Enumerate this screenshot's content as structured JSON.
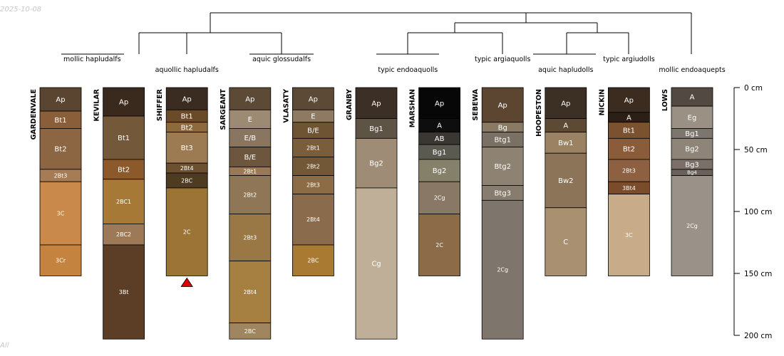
{
  "watermark": {
    "date": "2025-10-08",
    "footer": "All"
  },
  "depth_axis": {
    "unit_suffix": " cm",
    "ticks": [
      0,
      50,
      100,
      150,
      200
    ],
    "max_depth": 200
  },
  "taxa": [
    {
      "label": "mollic hapludalfs",
      "soils": [
        "GARDENVALE",
        "KEVILAR"
      ]
    },
    {
      "label": "aquollic hapludalfs",
      "soils": [
        "SHIFFER"
      ]
    },
    {
      "label": "aquic glossudalfs",
      "soils": [
        "SARGEANT",
        "VLASATY"
      ]
    },
    {
      "label": "typic endoaquolls",
      "soils": [
        "GRANBY",
        "MARSHAN"
      ]
    },
    {
      "label": "typic argiaquolls",
      "soils": [
        "SEBEWA"
      ]
    },
    {
      "label": "aquic hapludolls",
      "soils": [
        "HOOPESTON"
      ]
    },
    {
      "label": "typic argiudolls",
      "soils": [
        "NICKIN"
      ]
    },
    {
      "label": "mollic endoaquepts",
      "soils": [
        "LOWS"
      ]
    }
  ],
  "profiles": [
    {
      "name": "GARDENVALE",
      "horizons": [
        {
          "name": "Ap",
          "top": 0,
          "bottom": 19,
          "color": "#5a4630"
        },
        {
          "name": "Bt1",
          "top": 19,
          "bottom": 33,
          "color": "#8a5e38"
        },
        {
          "name": "Bt2",
          "top": 33,
          "bottom": 66,
          "color": "#8c6543"
        },
        {
          "name": "2Bt3",
          "top": 66,
          "bottom": 76,
          "color": "#a67c55"
        },
        {
          "name": "3C",
          "top": 76,
          "bottom": 127,
          "color": "#c8894b"
        },
        {
          "name": "3Cr",
          "top": 127,
          "bottom": 152,
          "color": "#c4843f"
        }
      ]
    },
    {
      "name": "KEVILAR",
      "horizons": [
        {
          "name": "Ap",
          "top": 0,
          "bottom": 23,
          "color": "#3a2a1e"
        },
        {
          "name": "Bt1",
          "top": 23,
          "bottom": 58,
          "color": "#74583a"
        },
        {
          "name": "Bt2",
          "top": 58,
          "bottom": 74,
          "color": "#8c5a2a"
        },
        {
          "name": "2BC1",
          "top": 74,
          "bottom": 110,
          "color": "#a67a36"
        },
        {
          "name": "2BC2",
          "top": 110,
          "bottom": 127,
          "color": "#9c7a58"
        },
        {
          "name": "3Bt",
          "top": 127,
          "bottom": 203,
          "color": "#5c3e26"
        }
      ]
    },
    {
      "name": "SHIFFER",
      "mark": true,
      "horizons": [
        {
          "name": "Ap",
          "top": 0,
          "bottom": 18,
          "color": "#3a2c20"
        },
        {
          "name": "Bt1",
          "top": 18,
          "bottom": 28,
          "color": "#6b4a28"
        },
        {
          "name": "Bt2",
          "top": 28,
          "bottom": 36,
          "color": "#8c6a3e"
        },
        {
          "name": "Bt3",
          "top": 36,
          "bottom": 61,
          "color": "#9c7a52"
        },
        {
          "name": "2Bt4",
          "top": 61,
          "bottom": 69,
          "color": "#6c5030"
        },
        {
          "name": "2BC",
          "top": 69,
          "bottom": 81,
          "color": "#4f3a22"
        },
        {
          "name": "2C",
          "top": 81,
          "bottom": 152,
          "color": "#9c7436"
        }
      ]
    },
    {
      "name": "SARGEANT",
      "horizons": [
        {
          "name": "Ap",
          "top": 0,
          "bottom": 18,
          "color": "#5c4a36"
        },
        {
          "name": "E",
          "top": 18,
          "bottom": 33,
          "color": "#9c8a72"
        },
        {
          "name": "E/B",
          "top": 33,
          "bottom": 48,
          "color": "#8a7660"
        },
        {
          "name": "B/E",
          "top": 48,
          "bottom": 64,
          "color": "#6c563e"
        },
        {
          "name": "2Bt1",
          "top": 64,
          "bottom": 71,
          "color": "#9a7a56"
        },
        {
          "name": "2Bt2",
          "top": 71,
          "bottom": 102,
          "color": "#8e7656"
        },
        {
          "name": "2Bt3",
          "top": 102,
          "bottom": 140,
          "color": "#9a7846"
        },
        {
          "name": "2Bt4",
          "top": 140,
          "bottom": 190,
          "color": "#a68040"
        },
        {
          "name": "2BC",
          "top": 190,
          "bottom": 203,
          "color": "#a08660"
        }
      ]
    },
    {
      "name": "VLASATY",
      "horizons": [
        {
          "name": "Ap",
          "top": 0,
          "bottom": 18,
          "color": "#5c4a36"
        },
        {
          "name": "E",
          "top": 18,
          "bottom": 28,
          "color": "#8e7a62"
        },
        {
          "name": "B/E",
          "top": 28,
          "bottom": 41,
          "color": "#6e5432"
        },
        {
          "name": "2Bt1",
          "top": 41,
          "bottom": 56,
          "color": "#7a5e3c"
        },
        {
          "name": "2Bt2",
          "top": 56,
          "bottom": 71,
          "color": "#735838"
        },
        {
          "name": "2Bt3",
          "top": 71,
          "bottom": 86,
          "color": "#8c6c44"
        },
        {
          "name": "2Bt4",
          "top": 86,
          "bottom": 127,
          "color": "#8a6c4c"
        },
        {
          "name": "2BC",
          "top": 127,
          "bottom": 152,
          "color": "#a87a32"
        }
      ]
    },
    {
      "name": "GRANBY",
      "horizons": [
        {
          "name": "Ap",
          "top": 0,
          "bottom": 25,
          "color": "#3c3026"
        },
        {
          "name": "Bg1",
          "top": 25,
          "bottom": 41,
          "color": "#5e5446"
        },
        {
          "name": "Bg2",
          "top": 41,
          "bottom": 81,
          "color": "#9e8c76"
        },
        {
          "name": "Cg",
          "top": 81,
          "bottom": 203,
          "color": "#bfaf98"
        }
      ]
    },
    {
      "name": "MARSHAN",
      "horizons": [
        {
          "name": "Ap",
          "top": 0,
          "bottom": 25,
          "color": "#070707"
        },
        {
          "name": "A",
          "top": 25,
          "bottom": 36,
          "color": "#0e0e0e"
        },
        {
          "name": "AB",
          "top": 36,
          "bottom": 46,
          "color": "#3a3632"
        },
        {
          "name": "Bg1",
          "top": 46,
          "bottom": 58,
          "color": "#5a5a50"
        },
        {
          "name": "Bg2",
          "top": 58,
          "bottom": 76,
          "color": "#84806a"
        },
        {
          "name": "2Cg",
          "top": 76,
          "bottom": 102,
          "color": "#8a7866"
        },
        {
          "name": "2C",
          "top": 102,
          "bottom": 152,
          "color": "#8c6c48"
        }
      ]
    },
    {
      "name": "SEBEWA",
      "horizons": [
        {
          "name": "Ap",
          "top": 0,
          "bottom": 28,
          "color": "#5c4632"
        },
        {
          "name": "Bg",
          "top": 28,
          "bottom": 36,
          "color": "#8a7a64"
        },
        {
          "name": "Btg1",
          "top": 36,
          "bottom": 48,
          "color": "#7a7064"
        },
        {
          "name": "Btg2",
          "top": 48,
          "bottom": 79,
          "color": "#8e8272"
        },
        {
          "name": "Btg3",
          "top": 79,
          "bottom": 91,
          "color": "#887c6e"
        },
        {
          "name": "2Cg",
          "top": 91,
          "bottom": 203,
          "color": "#7e766c"
        }
      ]
    },
    {
      "name": "HOOPESTON",
      "horizons": [
        {
          "name": "Ap",
          "top": 0,
          "bottom": 25,
          "color": "#3c3024"
        },
        {
          "name": "A",
          "top": 25,
          "bottom": 36,
          "color": "#5c4a34"
        },
        {
          "name": "Bw1",
          "top": 36,
          "bottom": 53,
          "color": "#9a8262"
        },
        {
          "name": "Bw2",
          "top": 53,
          "bottom": 97,
          "color": "#8c7458"
        },
        {
          "name": "C",
          "top": 97,
          "bottom": 152,
          "color": "#a89070"
        }
      ]
    },
    {
      "name": "NICKIN",
      "horizons": [
        {
          "name": "Ap",
          "top": 0,
          "bottom": 20,
          "color": "#3c2c20"
        },
        {
          "name": "A",
          "top": 20,
          "bottom": 28,
          "color": "#2c2016"
        },
        {
          "name": "Bt1",
          "top": 28,
          "bottom": 41,
          "color": "#7a5230"
        },
        {
          "name": "Bt2",
          "top": 41,
          "bottom": 58,
          "color": "#8a5c3a"
        },
        {
          "name": "2Bt3",
          "top": 58,
          "bottom": 76,
          "color": "#8c6040"
        },
        {
          "name": "3Bt4",
          "top": 76,
          "bottom": 86,
          "color": "#7a4c2c"
        },
        {
          "name": "3C",
          "top": 86,
          "bottom": 152,
          "color": "#c8ac8a"
        }
      ]
    },
    {
      "name": "LOWS",
      "horizons": [
        {
          "name": "A",
          "top": 0,
          "bottom": 15,
          "color": "#524a42"
        },
        {
          "name": "Eg",
          "top": 15,
          "bottom": 33,
          "color": "#9a9084"
        },
        {
          "name": "Bg1",
          "top": 33,
          "bottom": 41,
          "color": "#7c766e"
        },
        {
          "name": "Bg2",
          "top": 41,
          "bottom": 58,
          "color": "#8e8478"
        },
        {
          "name": "Bg3",
          "top": 58,
          "bottom": 66,
          "color": "#7a7068"
        },
        {
          "name": "Bg4",
          "top": 66,
          "bottom": 71,
          "color": "#6a625a"
        },
        {
          "name": "2Cg",
          "top": 71,
          "bottom": 152,
          "color": "#9a9288"
        }
      ]
    }
  ]
}
